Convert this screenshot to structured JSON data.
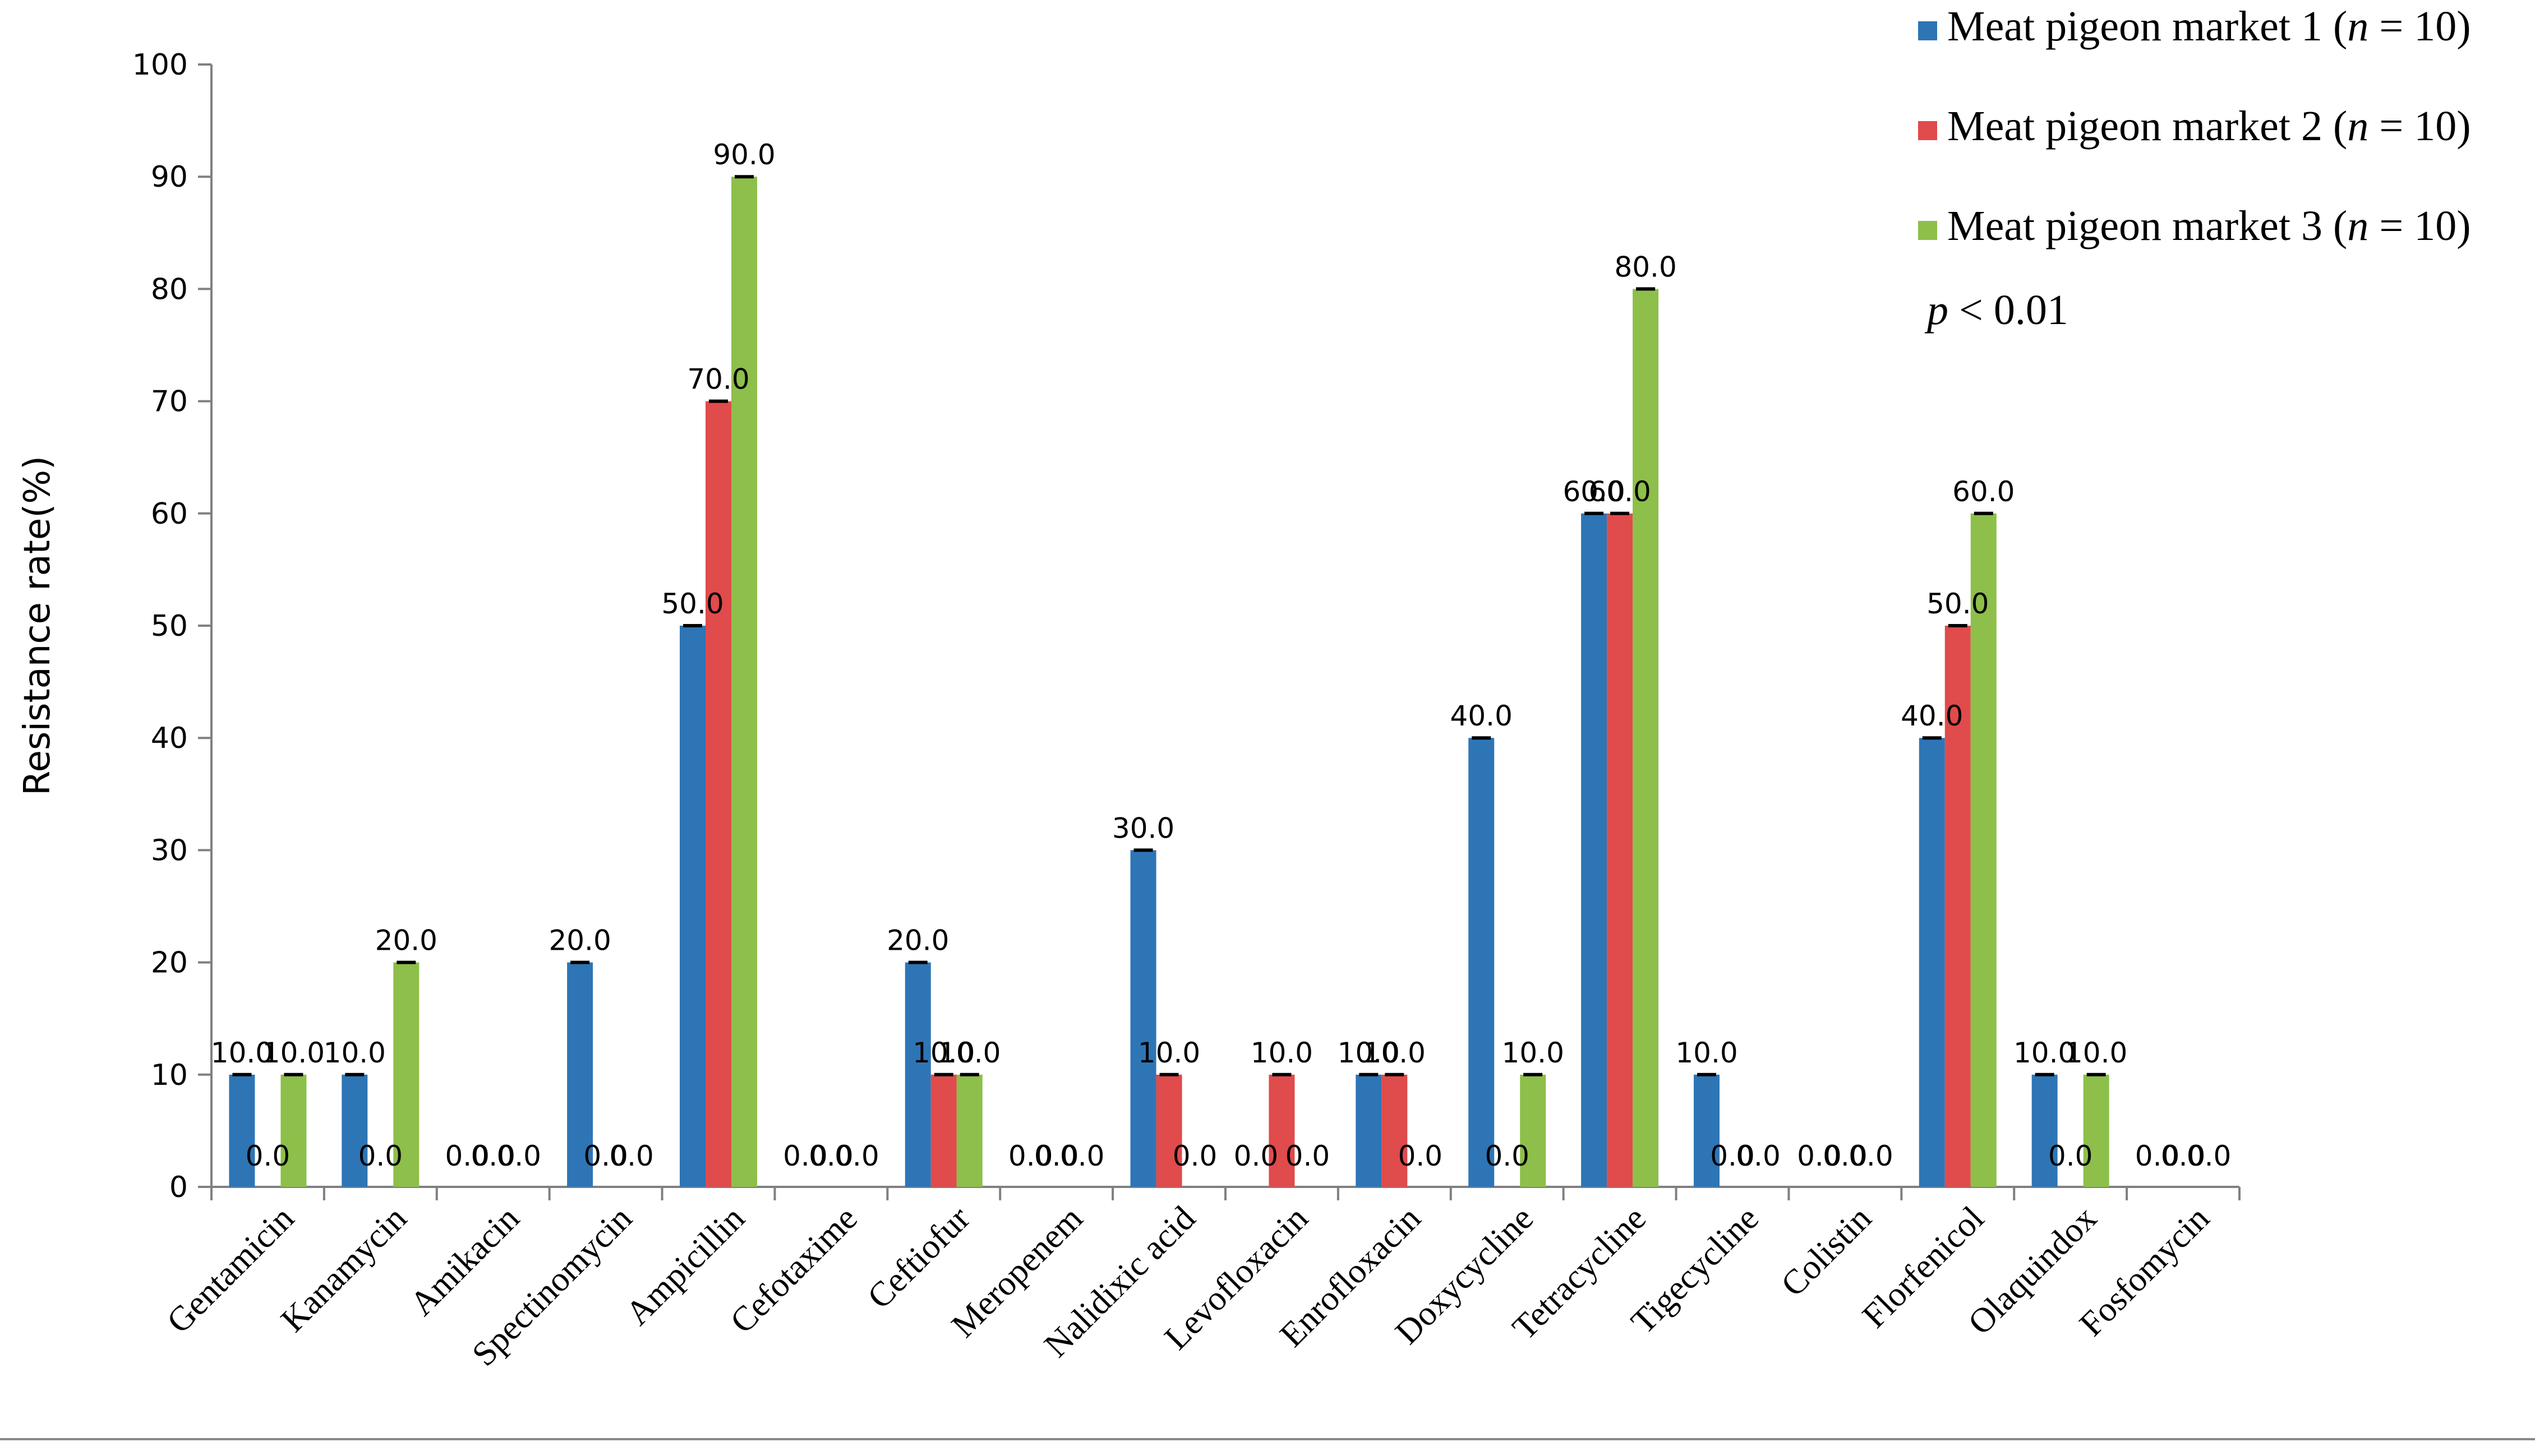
{
  "chart_data": {
    "type": "bar",
    "title": "",
    "xlabel": "",
    "ylabel": "Resistance rate(%)",
    "ylim": [
      0,
      100
    ],
    "yticks": [
      "0",
      "10",
      "20",
      "30",
      "40",
      "50",
      "60",
      "70",
      "80",
      "90",
      "100"
    ],
    "grid": false,
    "legend_position": "top-right",
    "categories": [
      "Gentamicin",
      "Kanamycin",
      "Amikacin",
      "Spectinomycin",
      "Ampicillin",
      "Cefotaxime",
      "Ceftiofur",
      "Meropenem",
      "Nalidixic acid",
      "Levofloxacin",
      "Enrofloxacin",
      "Doxycycline",
      "Tetracycline",
      "Tigecycline",
      "Colistin",
      "Florfenicol",
      "Olaquindox",
      "Fosfomycin"
    ],
    "series": [
      {
        "name": "Meat pigeon market 1",
        "name_prefix": "Meat pigeon market 1 (",
        "name_italic": "n",
        "name_suffix": " = 10)",
        "color": "#2E75B6",
        "values": [
          10,
          10,
          0,
          20,
          50,
          0,
          20,
          0,
          30,
          0,
          10,
          40,
          60,
          10,
          0,
          40,
          10,
          0
        ]
      },
      {
        "name": "Meat pigeon market 2",
        "name_prefix": "Meat pigeon market 2 (",
        "name_italic": "n",
        "name_suffix": " = 10)",
        "color": "#E04B4B",
        "values": [
          0,
          0,
          0,
          0,
          70,
          0,
          10,
          0,
          10,
          10,
          10,
          0,
          60,
          0,
          0,
          50,
          0,
          0
        ]
      },
      {
        "name": "Meat pigeon market 3",
        "name_prefix": "Meat pigeon market 3 (",
        "name_italic": "n",
        "name_suffix": " = 10)",
        "color": "#8DBF4A",
        "values": [
          10,
          20,
          0,
          0,
          90,
          0,
          10,
          0,
          0,
          0,
          0,
          10,
          80,
          0,
          0,
          60,
          10,
          0
        ]
      }
    ],
    "annotation": {
      "italic": "p",
      "text": " < 0.01"
    }
  }
}
